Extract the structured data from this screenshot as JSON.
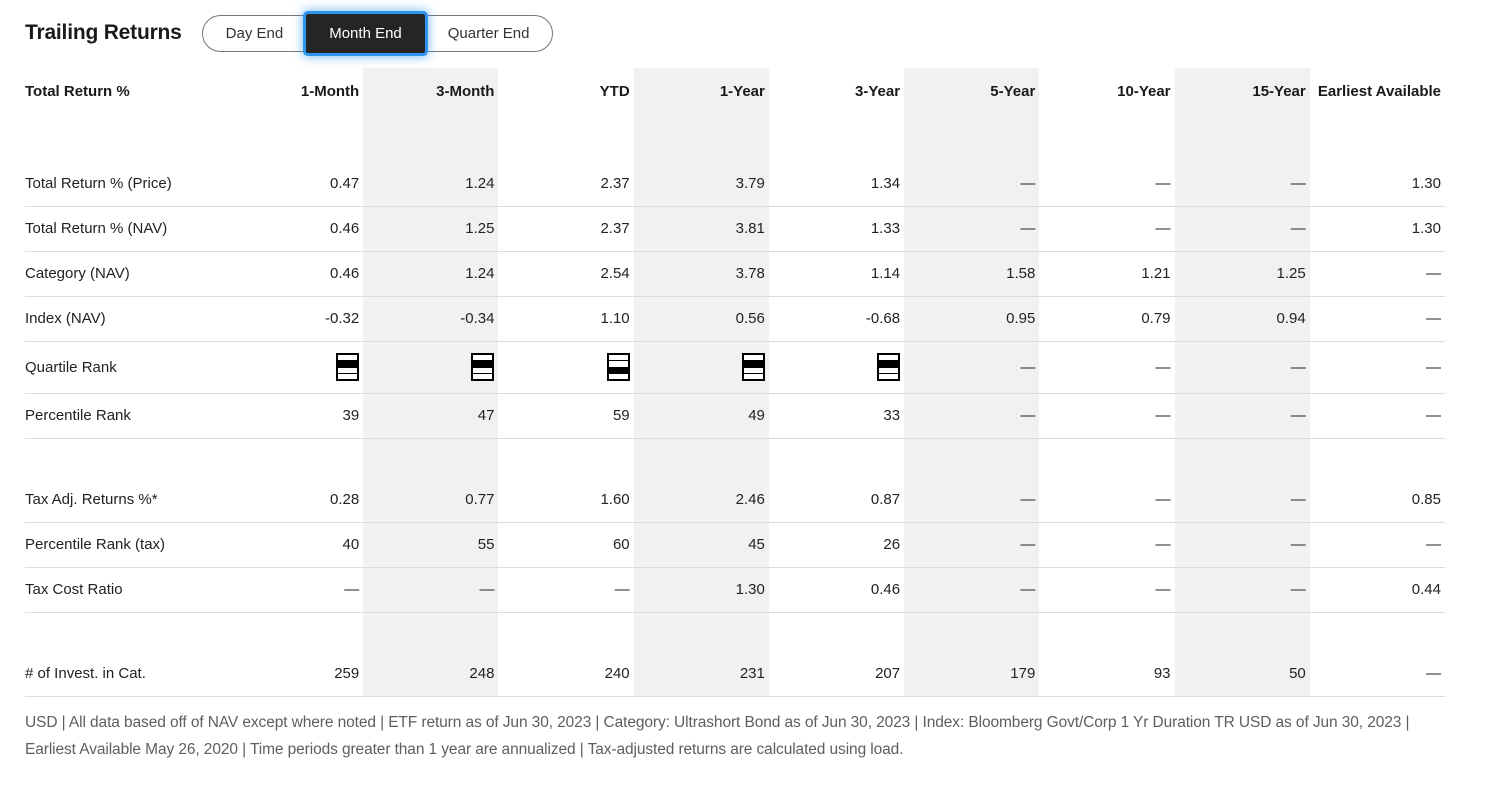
{
  "title": "Trailing Returns",
  "toggle": {
    "options": [
      {
        "label": "Day End",
        "selected": false
      },
      {
        "label": "Month End",
        "selected": true
      },
      {
        "label": "Quarter End",
        "selected": false
      }
    ]
  },
  "table": {
    "row_header": "Total Return %",
    "columns": [
      "1-Month",
      "3-Month",
      "YTD",
      "1-Year",
      "3-Year",
      "5-Year",
      "10-Year",
      "15-Year",
      "Earliest Available"
    ],
    "striped_columns": [
      "3-Month",
      "1-Year",
      "5-Year",
      "15-Year"
    ],
    "rows": [
      {
        "label": "Total Return % (Price)",
        "values": [
          "0.47",
          "1.24",
          "2.37",
          "3.79",
          "1.34",
          "—",
          "—",
          "—",
          "1.30"
        ]
      },
      {
        "label": "Total Return % (NAV)",
        "values": [
          "0.46",
          "1.25",
          "2.37",
          "3.81",
          "1.33",
          "—",
          "—",
          "—",
          "1.30"
        ]
      },
      {
        "label": "Category (NAV)",
        "values": [
          "0.46",
          "1.24",
          "2.54",
          "3.78",
          "1.14",
          "1.58",
          "1.21",
          "1.25",
          "—"
        ]
      },
      {
        "label": "Index (NAV)",
        "values": [
          "-0.32",
          "-0.34",
          "1.10",
          "0.56",
          "-0.68",
          "0.95",
          "0.79",
          "0.94",
          "—"
        ]
      },
      {
        "label": "Quartile Rank",
        "type": "quartile",
        "values": [
          2,
          2,
          3,
          2,
          2,
          "—",
          "—",
          "—",
          "—"
        ]
      },
      {
        "label": "Percentile Rank",
        "values": [
          "39",
          "47",
          "59",
          "49",
          "33",
          "—",
          "—",
          "—",
          "—"
        ]
      },
      {
        "type": "spacer"
      },
      {
        "label": "Tax Adj. Returns %*",
        "values": [
          "0.28",
          "0.77",
          "1.60",
          "2.46",
          "0.87",
          "—",
          "—",
          "—",
          "0.85"
        ]
      },
      {
        "label": "Percentile Rank (tax)",
        "values": [
          "40",
          "55",
          "60",
          "45",
          "26",
          "—",
          "—",
          "—",
          "—"
        ]
      },
      {
        "label": "Tax Cost Ratio",
        "values": [
          "—",
          "—",
          "—",
          "1.30",
          "0.46",
          "—",
          "—",
          "—",
          "0.44"
        ]
      },
      {
        "type": "spacer"
      },
      {
        "label": "# of Invest. in Cat.",
        "values": [
          "259",
          "248",
          "240",
          "231",
          "207",
          "179",
          "93",
          "50",
          "—"
        ]
      }
    ]
  },
  "footnote": "USD | All data based off of NAV except where noted | ETF return as of Jun 30, 2023 | Category: Ultrashort Bond as of Jun 30, 2023 | Index: Bloomberg Govt/Corp 1 Yr Duration TR USD as of Jun 30, 2023 | Earliest Available May 26, 2020 | Time periods greater than 1 year are annualized | Tax-adjusted returns are calculated using load.",
  "colors": {
    "stripe": "#F1F1F1",
    "row_border": "#DCDCDC",
    "text_primary": "#1A1A1A",
    "value_text": "#222222",
    "footnote_text": "#5E5E5E",
    "toggle_border": "#777777",
    "toggle_selected_bg": "#252525",
    "focus_blue": "#2E96F0"
  }
}
